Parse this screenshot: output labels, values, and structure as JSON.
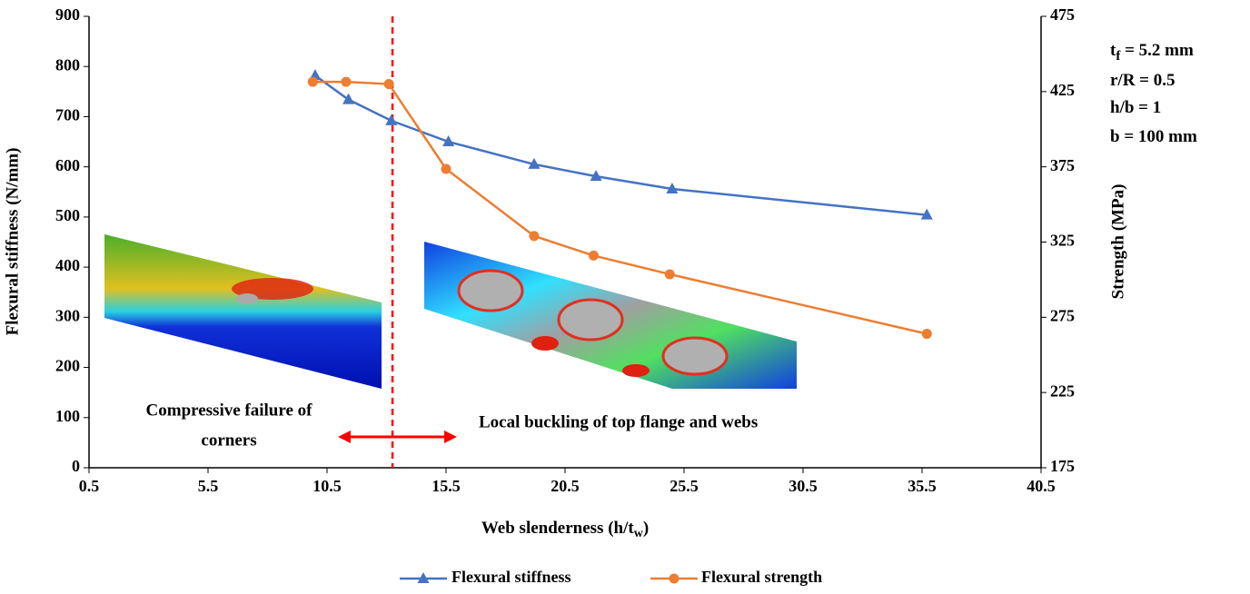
{
  "chart_data": {
    "type": "line",
    "x_label": [
      "Web slenderness (h/t",
      "w",
      ")"
    ],
    "y_label": "Flexural stiffness (N/mm)",
    "y2_label": "Strength (MPa)",
    "xlim": [
      0.5,
      40.5
    ],
    "xticks": [
      0.5,
      5.5,
      10.5,
      15.5,
      20.5,
      25.5,
      30.5,
      35.5,
      40.5
    ],
    "ylim": [
      0,
      900
    ],
    "yticks": [
      0,
      100,
      200,
      300,
      400,
      500,
      600,
      700,
      800,
      900
    ],
    "y2lim": [
      175,
      475
    ],
    "y2ticks": [
      175,
      225,
      275,
      325,
      375,
      425,
      475
    ],
    "reference_line_x": 13.25,
    "series": [
      {
        "name": "Flexural stiffness",
        "color": "#4472c4",
        "marker": "triangle",
        "x": [
          10.0,
          11.4,
          13.2,
          15.6,
          19.2,
          21.8,
          25.0,
          35.7
        ],
        "values": [
          782,
          734,
          692,
          650,
          605,
          581,
          556,
          504
        ]
      },
      {
        "name": "Flexural strength",
        "color": "#ed7d31",
        "marker": "circle",
        "axis": "y2",
        "x": [
          9.9,
          11.3,
          13.1,
          15.5,
          19.2,
          21.7,
          24.9,
          35.7
        ],
        "values": [
          431.5,
          431.5,
          430,
          373.6,
          329,
          316,
          303.6,
          264
        ]
      }
    ],
    "annotations": {
      "left": [
        "Compressive failure of",
        "corners"
      ],
      "right": "Local buckling of top flange and webs",
      "parameters": [
        [
          "t",
          "f",
          " = 5.2 mm"
        ],
        [
          "r/R = 0.5"
        ],
        [
          "h/b = 1"
        ],
        [
          "b = 100 mm"
        ]
      ]
    }
  }
}
